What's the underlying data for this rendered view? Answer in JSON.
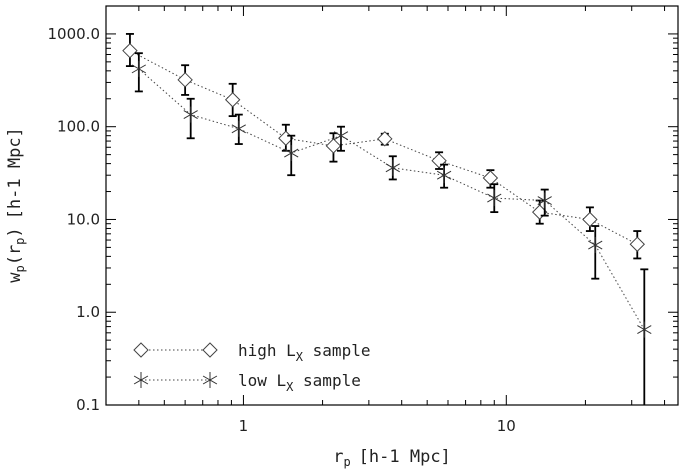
{
  "chart_data": {
    "type": "scatter",
    "title": "",
    "xlabel": "r",
    "xlabel_sub": "p",
    "xlabel_unit": "[h-1 Mpc]",
    "ylabel": "w",
    "ylabel_sub": "p",
    "ylabel_mid": "(r",
    "ylabel_close": ")",
    "ylabel_unit": "[h-1 Mpc]",
    "x_scale": "log",
    "y_scale": "log",
    "xlim": [
      0.3,
      45
    ],
    "ylim": [
      0.1,
      2000
    ],
    "x_ticks": [
      {
        "value": 1,
        "label": "1"
      },
      {
        "value": 10,
        "label": "10"
      }
    ],
    "y_ticks": [
      {
        "value": 0.1,
        "label": "0.1"
      },
      {
        "value": 1,
        "label": "1.0"
      },
      {
        "value": 10,
        "label": "10.0"
      },
      {
        "value": 100,
        "label": "100.0"
      },
      {
        "value": 1000,
        "label": "1000.0"
      }
    ],
    "grid": false,
    "legend_position": "bottom-left",
    "series": [
      {
        "name": "high L_X sample",
        "legend_main": "high L",
        "legend_sub": "X",
        "legend_tail": " sample",
        "marker": "diamond",
        "x": [
          0.37,
          0.6,
          0.91,
          1.45,
          2.2,
          3.45,
          5.55,
          8.7,
          13.4,
          20.8,
          31.5
        ],
        "y": [
          660,
          320,
          195,
          75,
          62,
          74,
          43,
          28,
          12,
          10,
          5.4
        ],
        "y_low": [
          450,
          220,
          130,
          55,
          42,
          64,
          35,
          22,
          9,
          7.5,
          3.8
        ],
        "y_high": [
          1000,
          460,
          290,
          105,
          85,
          84,
          53,
          34,
          16,
          13.5,
          7.5
        ]
      },
      {
        "name": "low L_X sample",
        "legend_main": "low L",
        "legend_sub": "X",
        "legend_tail": " sample",
        "marker": "star",
        "x": [
          0.4,
          0.63,
          0.96,
          1.52,
          2.35,
          3.7,
          5.8,
          9.0,
          14.0,
          21.8,
          33.5
        ],
        "y": [
          420,
          135,
          95,
          52,
          80,
          36,
          30,
          17,
          16,
          5.3,
          0.65
        ],
        "y_low": [
          240,
          75,
          65,
          30,
          55,
          27,
          22,
          12,
          11,
          2.3,
          0.1
        ],
        "y_high": [
          620,
          200,
          135,
          80,
          100,
          48,
          39,
          24,
          21,
          8.5,
          2.9
        ]
      }
    ]
  }
}
